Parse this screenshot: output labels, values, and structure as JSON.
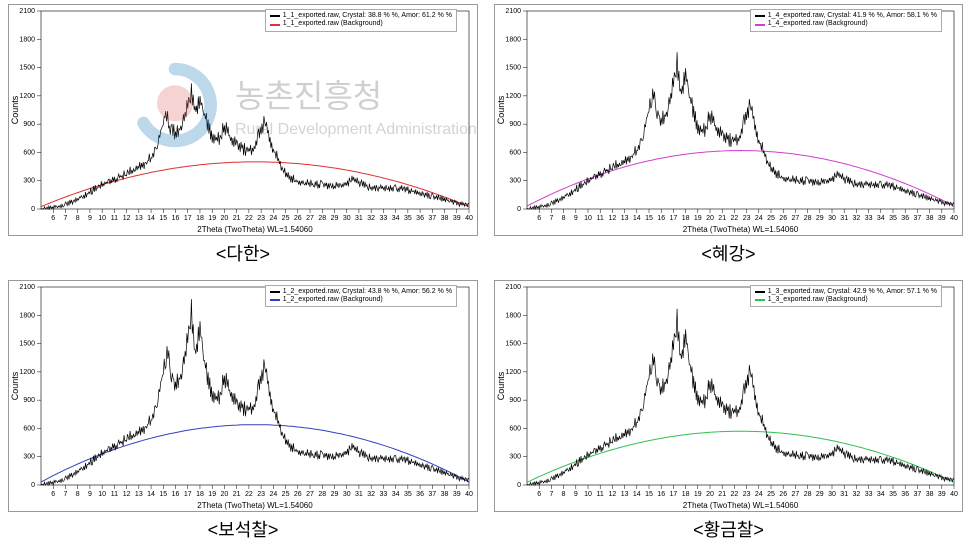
{
  "watermark": {
    "korean": "농촌진흥청",
    "english": "Rural Development Administration",
    "logo_red": "#d9534f",
    "logo_blue": "#0066b3"
  },
  "axes": {
    "xlabel": "2Theta (TwoTheta) WL=1.54060",
    "ylabel": "Counts",
    "xlim": [
      5,
      40
    ],
    "xticks": [
      6,
      7,
      8,
      9,
      10,
      11,
      12,
      13,
      14,
      15,
      16,
      17,
      18,
      19,
      20,
      21,
      22,
      23,
      24,
      25,
      26,
      27,
      28,
      29,
      30,
      31,
      32,
      33,
      34,
      35,
      36,
      37,
      38,
      39,
      40
    ],
    "ylim": [
      0,
      2100
    ],
    "yticks": [
      0,
      300,
      600,
      900,
      1200,
      1500,
      1800,
      2100
    ],
    "tick_fontsize": 7,
    "label_fontsize": 9,
    "tick_color": "#000000",
    "data_color": "#000000",
    "border_color": "#999999"
  },
  "charts": [
    {
      "caption": "<다한>",
      "legend": [
        {
          "label": "1_1_exported.raw, Crystal: 38.8 % %, Amor: 61.2 % %",
          "color": "#000000"
        },
        {
          "label": "1_1_exported.raw (Background)",
          "color": "#e03030"
        }
      ],
      "bg_color": "#e03030",
      "bg_peak": 500,
      "data": [
        [
          5,
          10
        ],
        [
          6,
          25
        ],
        [
          7,
          60
        ],
        [
          8,
          120
        ],
        [
          9,
          200
        ],
        [
          10,
          280
        ],
        [
          11,
          340
        ],
        [
          12,
          400
        ],
        [
          13,
          480
        ],
        [
          13.5,
          520
        ],
        [
          14,
          570
        ],
        [
          14.5,
          750
        ],
        [
          15,
          950
        ],
        [
          15.2,
          1100
        ],
        [
          15.5,
          920
        ],
        [
          16,
          850
        ],
        [
          16.5,
          900
        ],
        [
          17,
          1200
        ],
        [
          17.3,
          1280
        ],
        [
          17.6,
          1100
        ],
        [
          18,
          1230
        ],
        [
          18.3,
          1060
        ],
        [
          18.6,
          950
        ],
        [
          19,
          800
        ],
        [
          19.5,
          780
        ],
        [
          20,
          920
        ],
        [
          20.3,
          840
        ],
        [
          20.7,
          760
        ],
        [
          21,
          720
        ],
        [
          21.5,
          680
        ],
        [
          22,
          650
        ],
        [
          22.5,
          700
        ],
        [
          23,
          910
        ],
        [
          23.3,
          970
        ],
        [
          23.6,
          820
        ],
        [
          24,
          680
        ],
        [
          24.5,
          520
        ],
        [
          25,
          400
        ],
        [
          25.5,
          350
        ],
        [
          26,
          320
        ],
        [
          27,
          290
        ],
        [
          28,
          280
        ],
        [
          29,
          260
        ],
        [
          30,
          290
        ],
        [
          30.5,
          340
        ],
        [
          31,
          300
        ],
        [
          32,
          250
        ],
        [
          33,
          240
        ],
        [
          34,
          250
        ],
        [
          35,
          220
        ],
        [
          36,
          180
        ],
        [
          37,
          150
        ],
        [
          38,
          120
        ],
        [
          39,
          80
        ],
        [
          40,
          50
        ]
      ]
    },
    {
      "caption": "<혜강>",
      "legend": [
        {
          "label": "1_4_exported.raw, Crystal: 41.9 % %, Amor: 58.1 % %",
          "color": "#000000"
        },
        {
          "label": "1_4_exported.raw (Background)",
          "color": "#d040d0"
        }
      ],
      "bg_color": "#d040d0",
      "bg_peak": 620,
      "data": [
        [
          5,
          10
        ],
        [
          6,
          30
        ],
        [
          7,
          70
        ],
        [
          8,
          140
        ],
        [
          9,
          230
        ],
        [
          10,
          320
        ],
        [
          11,
          400
        ],
        [
          12,
          470
        ],
        [
          13,
          540
        ],
        [
          13.5,
          590
        ],
        [
          14,
          650
        ],
        [
          14.5,
          850
        ],
        [
          15,
          1100
        ],
        [
          15.3,
          1300
        ],
        [
          15.6,
          1100
        ],
        [
          16,
          1000
        ],
        [
          16.5,
          1050
        ],
        [
          17,
          1450
        ],
        [
          17.3,
          1600
        ],
        [
          17.6,
          1280
        ],
        [
          18,
          1530
        ],
        [
          18.3,
          1250
        ],
        [
          18.6,
          1100
        ],
        [
          19,
          900
        ],
        [
          19.5,
          870
        ],
        [
          20,
          1050
        ],
        [
          20.3,
          950
        ],
        [
          20.7,
          870
        ],
        [
          21,
          820
        ],
        [
          21.5,
          780
        ],
        [
          22,
          760
        ],
        [
          22.5,
          820
        ],
        [
          23,
          1080
        ],
        [
          23.3,
          1150
        ],
        [
          23.6,
          970
        ],
        [
          24,
          780
        ],
        [
          24.5,
          600
        ],
        [
          25,
          460
        ],
        [
          25.5,
          400
        ],
        [
          26,
          360
        ],
        [
          27,
          330
        ],
        [
          28,
          320
        ],
        [
          29,
          300
        ],
        [
          30,
          340
        ],
        [
          30.5,
          390
        ],
        [
          31,
          340
        ],
        [
          32,
          290
        ],
        [
          33,
          280
        ],
        [
          34,
          290
        ],
        [
          35,
          260
        ],
        [
          36,
          210
        ],
        [
          37,
          170
        ],
        [
          38,
          130
        ],
        [
          39,
          90
        ],
        [
          40,
          55
        ]
      ]
    },
    {
      "caption": "<보석찰>",
      "legend": [
        {
          "label": "1_2_exported.raw, Crystal: 43.8 % %, Amor: 56.2 % %",
          "color": "#000000"
        },
        {
          "label": "1_2_exported.raw (Background)",
          "color": "#3040c0"
        }
      ],
      "bg_color": "#3040c0",
      "bg_peak": 640,
      "data": [
        [
          5,
          15
        ],
        [
          6,
          35
        ],
        [
          7,
          80
        ],
        [
          8,
          160
        ],
        [
          9,
          260
        ],
        [
          10,
          360
        ],
        [
          11,
          440
        ],
        [
          12,
          520
        ],
        [
          13,
          600
        ],
        [
          13.5,
          650
        ],
        [
          14,
          720
        ],
        [
          14.5,
          960
        ],
        [
          15,
          1250
        ],
        [
          15.3,
          1500
        ],
        [
          15.6,
          1250
        ],
        [
          16,
          1130
        ],
        [
          16.5,
          1200
        ],
        [
          17,
          1680
        ],
        [
          17.3,
          1900
        ],
        [
          17.6,
          1450
        ],
        [
          18,
          1780
        ],
        [
          18.3,
          1400
        ],
        [
          18.6,
          1200
        ],
        [
          19,
          1000
        ],
        [
          19.5,
          960
        ],
        [
          20,
          1200
        ],
        [
          20.3,
          1080
        ],
        [
          20.7,
          980
        ],
        [
          21,
          900
        ],
        [
          21.5,
          860
        ],
        [
          22,
          840
        ],
        [
          22.5,
          900
        ],
        [
          23,
          1220
        ],
        [
          23.3,
          1320
        ],
        [
          23.6,
          1080
        ],
        [
          24,
          860
        ],
        [
          24.5,
          660
        ],
        [
          25,
          500
        ],
        [
          25.5,
          430
        ],
        [
          26,
          390
        ],
        [
          27,
          350
        ],
        [
          28,
          340
        ],
        [
          29,
          320
        ],
        [
          30,
          370
        ],
        [
          30.5,
          430
        ],
        [
          31,
          370
        ],
        [
          32,
          310
        ],
        [
          33,
          300
        ],
        [
          34,
          310
        ],
        [
          35,
          280
        ],
        [
          36,
          230
        ],
        [
          37,
          190
        ],
        [
          38,
          150
        ],
        [
          39,
          100
        ],
        [
          40,
          60
        ]
      ]
    },
    {
      "caption": "<황금찰>",
      "legend": [
        {
          "label": "1_3_exported.raw, Crystal: 42.9 % %, Amor: 57.1 % %",
          "color": "#000000"
        },
        {
          "label": "1_3_exported.raw (Background)",
          "color": "#30c050"
        }
      ],
      "bg_color": "#30c050",
      "bg_peak": 570,
      "data": [
        [
          5,
          12
        ],
        [
          6,
          32
        ],
        [
          7,
          75
        ],
        [
          8,
          150
        ],
        [
          9,
          245
        ],
        [
          10,
          340
        ],
        [
          11,
          420
        ],
        [
          12,
          500
        ],
        [
          13,
          575
        ],
        [
          13.5,
          625
        ],
        [
          14,
          695
        ],
        [
          14.5,
          920
        ],
        [
          15,
          1200
        ],
        [
          15.3,
          1420
        ],
        [
          15.6,
          1200
        ],
        [
          16,
          1080
        ],
        [
          16.5,
          1150
        ],
        [
          17,
          1600
        ],
        [
          17.3,
          1800
        ],
        [
          17.6,
          1400
        ],
        [
          18,
          1690
        ],
        [
          18.3,
          1350
        ],
        [
          18.6,
          1160
        ],
        [
          19,
          960
        ],
        [
          19.5,
          920
        ],
        [
          20,
          1140
        ],
        [
          20.3,
          1030
        ],
        [
          20.7,
          940
        ],
        [
          21,
          870
        ],
        [
          21.5,
          830
        ],
        [
          22,
          810
        ],
        [
          22.5,
          870
        ],
        [
          23,
          1170
        ],
        [
          23.3,
          1260
        ],
        [
          23.6,
          1040
        ],
        [
          24,
          820
        ],
        [
          24.5,
          630
        ],
        [
          25,
          480
        ],
        [
          25.5,
          415
        ],
        [
          26,
          375
        ],
        [
          27,
          340
        ],
        [
          28,
          330
        ],
        [
          29,
          310
        ],
        [
          30,
          355
        ],
        [
          30.5,
          415
        ],
        [
          31,
          355
        ],
        [
          32,
          300
        ],
        [
          33,
          290
        ],
        [
          34,
          300
        ],
        [
          35,
          270
        ],
        [
          36,
          220
        ],
        [
          37,
          180
        ],
        [
          38,
          140
        ],
        [
          39,
          95
        ],
        [
          40,
          58
        ]
      ]
    }
  ]
}
